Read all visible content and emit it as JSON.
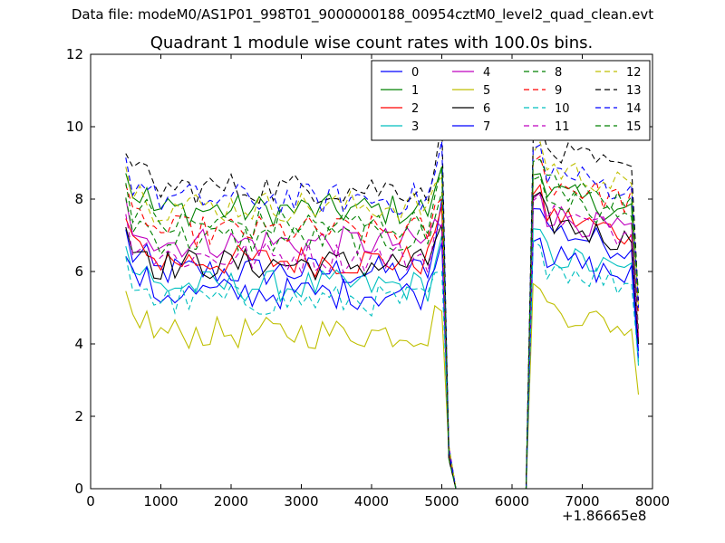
{
  "figure": {
    "suptitle": "Data file: modeM0/AS1P01_998T01_9000000188_00954cztM0_level2_quad_clean.evt"
  },
  "chart_data": {
    "type": "line",
    "title": "Quadrant 1 module wise count rates with 100.0s bins.",
    "xlabel": "",
    "ylabel": "",
    "x_offset_label": "+1.86665e8",
    "xlim": [
      0,
      8000
    ],
    "ylim": [
      0,
      12
    ],
    "xticks": [
      0,
      1000,
      2000,
      3000,
      4000,
      5000,
      6000,
      7000,
      8000
    ],
    "yticks": [
      0,
      2,
      4,
      6,
      8,
      10,
      12
    ],
    "grid": false,
    "legend": {
      "placement": "top-right",
      "columns": 4
    },
    "data_gap": {
      "from": 5200,
      "to": 6200,
      "value": 0
    },
    "x_segment_1": {
      "start": 500,
      "step": 100,
      "count": 46
    },
    "x_segment_2": {
      "start": 6200,
      "step": 100,
      "count": 17
    },
    "series": [
      {
        "name": "0",
        "color": "#0000ff",
        "dashed": false,
        "level": 6.0,
        "peak_left": 8.0,
        "level_right": 7.2,
        "end": 3.8
      },
      {
        "name": "1",
        "color": "#008000",
        "dashed": false,
        "level": 7.7,
        "peak_left": 8.9,
        "level_right": 8.2,
        "end": 4.0
      },
      {
        "name": "2",
        "color": "#ff0000",
        "dashed": false,
        "level": 6.3,
        "peak_left": 7.8,
        "level_right": 7.6,
        "end": 4.2
      },
      {
        "name": "3",
        "color": "#00bfbf",
        "dashed": false,
        "level": 5.6,
        "peak_left": 7.0,
        "level_right": 6.5,
        "end": 3.4
      },
      {
        "name": "4",
        "color": "#bf00bf",
        "dashed": false,
        "level": 6.8,
        "peak_left": 7.2,
        "level_right": 7.6,
        "end": 4.0
      },
      {
        "name": "5",
        "color": "#bfbf00",
        "dashed": false,
        "level": 4.3,
        "peak_left": 4.9,
        "level_right": 5.0,
        "end": 2.6
      },
      {
        "name": "6",
        "color": "#000000",
        "dashed": false,
        "level": 6.2,
        "peak_left": 7.3,
        "level_right": 7.4,
        "end": 4.0
      },
      {
        "name": "7",
        "color": "#0000ff",
        "dashed": false,
        "level": 5.4,
        "peak_left": 6.8,
        "level_right": 6.4,
        "end": 3.6
      },
      {
        "name": "8",
        "color": "#008000",
        "dashed": true,
        "level": 6.9,
        "peak_left": 8.2,
        "level_right": 8.0,
        "end": 4.4
      },
      {
        "name": "9",
        "color": "#ff0000",
        "dashed": true,
        "level": 7.1,
        "peak_left": 8.0,
        "level_right": 8.5,
        "end": 4.8
      },
      {
        "name": "10",
        "color": "#00bfbf",
        "dashed": true,
        "level": 5.2,
        "peak_left": 6.0,
        "level_right": 6.2,
        "end": 3.5
      },
      {
        "name": "11",
        "color": "#bf00bf",
        "dashed": true,
        "level": 6.4,
        "peak_left": 7.3,
        "level_right": 7.6,
        "end": 4.2
      },
      {
        "name": "12",
        "color": "#bfbf00",
        "dashed": true,
        "level": 7.8,
        "peak_left": 8.6,
        "level_right": 8.9,
        "end": 5.0
      },
      {
        "name": "13",
        "color": "#000000",
        "dashed": true,
        "level": 8.3,
        "peak_left": 10.2,
        "level_right": 9.3,
        "end": 5.2
      },
      {
        "name": "14",
        "color": "#0000ff",
        "dashed": true,
        "level": 8.0,
        "peak_left": 9.6,
        "level_right": 8.8,
        "end": 5.0
      },
      {
        "name": "15",
        "color": "#008000",
        "dashed": true,
        "level": 7.3,
        "peak_left": 8.9,
        "level_right": 8.4,
        "end": 5.4
      }
    ]
  }
}
